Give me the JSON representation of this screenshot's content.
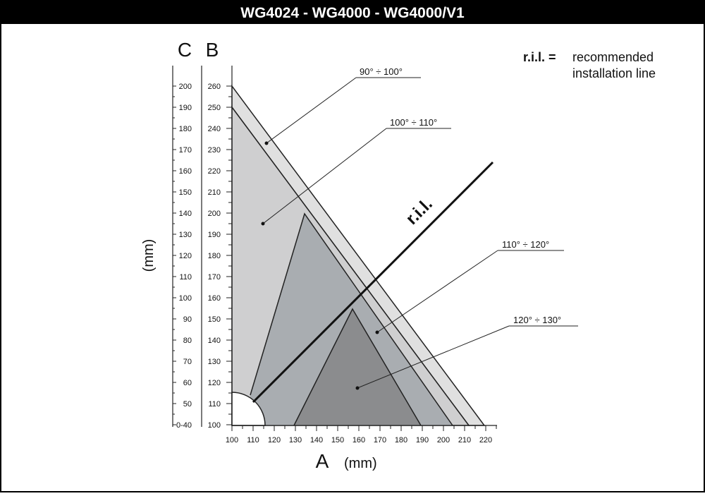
{
  "header": {
    "title": "WG4024 - WG4000 - WG4000/V1"
  },
  "legend": {
    "key": "r.i.l. =",
    "line1": "recommended",
    "line2": "installation line"
  },
  "diagram": {
    "axis_c": {
      "letter": "C",
      "ticks": [
        "200",
        "190",
        "180",
        "170",
        "160",
        "150",
        "140",
        "130",
        "120",
        "110",
        "100",
        "90",
        "80",
        "70",
        "60",
        "50",
        "0-40"
      ]
    },
    "axis_b": {
      "letter": "B",
      "ticks": [
        "260",
        "250",
        "240",
        "230",
        "220",
        "210",
        "200",
        "190",
        "180",
        "170",
        "160",
        "150",
        "140",
        "130",
        "120",
        "110",
        "100"
      ]
    },
    "axis_a": {
      "letter": "A",
      "unit": "(mm)",
      "ticks": [
        "100",
        "110",
        "120",
        "130",
        "140",
        "150",
        "160",
        "170",
        "180",
        "190",
        "200",
        "210",
        "220"
      ]
    },
    "vertical_unit": "(mm)",
    "ril_label": "r.i.l.",
    "zones": [
      {
        "label": "90° ÷ 100°",
        "color": "#e0e0e0"
      },
      {
        "label": "100° ÷ 110°",
        "color": "#cfcfd0"
      },
      {
        "label": "110° ÷ 120°",
        "color": "#a9adb1"
      },
      {
        "label": "120° ÷ 130°",
        "color": "#8b8c8e"
      }
    ]
  }
}
